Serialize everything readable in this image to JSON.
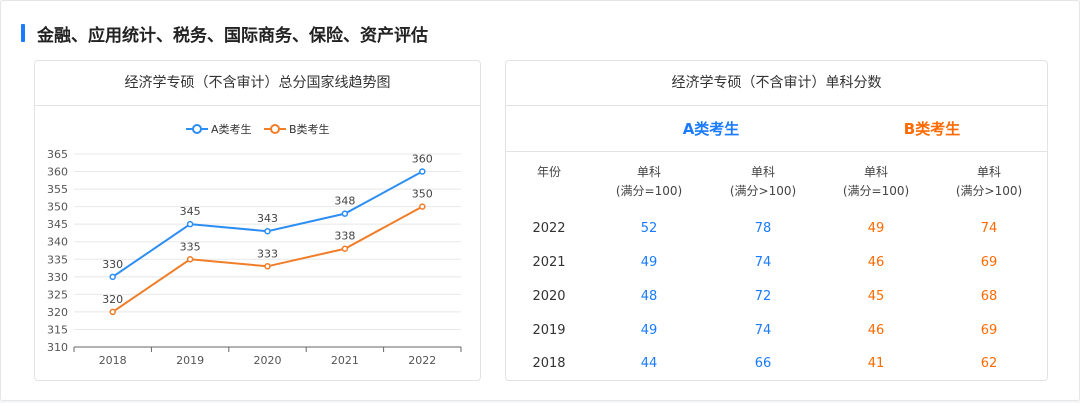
{
  "section": {
    "title": "金融、应用统计、税务、国际商务、保险、资产评估"
  },
  "chart_panel": {
    "title": "经济学专硕（不含审计）总分国家线趋势图"
  },
  "chart_data": {
    "type": "line",
    "title": "经济学专硕（不含审计）总分国家线趋势图",
    "x": [
      "2018",
      "2019",
      "2020",
      "2021",
      "2022"
    ],
    "series": [
      {
        "name": "A类考生",
        "color": "#2c8ef2",
        "values": [
          330,
          345,
          343,
          348,
          360
        ]
      },
      {
        "name": "B类考生",
        "color": "#f07d28",
        "values": [
          320,
          335,
          333,
          338,
          350
        ]
      }
    ],
    "ylim": [
      310,
      365
    ],
    "yticks": [
      310,
      315,
      320,
      325,
      330,
      335,
      340,
      345,
      350,
      355,
      360,
      365
    ],
    "grid": true,
    "legend": "top"
  },
  "table_panel": {
    "title": "经济学专硕（不含审计）单科分数",
    "group_a": "A类考生",
    "group_b": "B类考生",
    "headers": [
      {
        "line1": "年份",
        "line2": ""
      },
      {
        "line1": "单科",
        "line2": "(满分=100)"
      },
      {
        "line1": "单科",
        "line2": "(满分>100)"
      },
      {
        "line1": "单科",
        "line2": "(满分=100)"
      },
      {
        "line1": "单科",
        "line2": "(满分>100)"
      }
    ],
    "rows": [
      {
        "year": "2022",
        "a1": "52",
        "a2": "78",
        "b1": "49",
        "b2": "74"
      },
      {
        "year": "2021",
        "a1": "49",
        "a2": "74",
        "b1": "46",
        "b2": "69"
      },
      {
        "year": "2020",
        "a1": "48",
        "a2": "72",
        "b1": "45",
        "b2": "68"
      },
      {
        "year": "2019",
        "a1": "49",
        "a2": "74",
        "b1": "46",
        "b2": "69"
      },
      {
        "year": "2018",
        "a1": "44",
        "a2": "66",
        "b1": "41",
        "b2": "62"
      }
    ]
  }
}
